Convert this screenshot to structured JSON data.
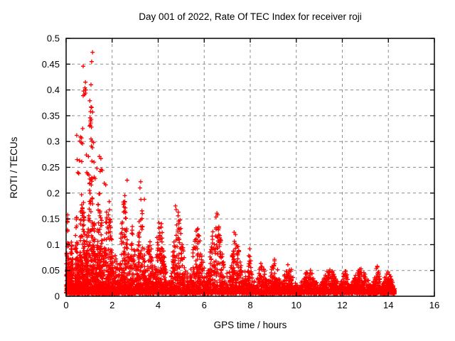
{
  "colors": {
    "marker": "#ff0000",
    "grid": "#8c8c8c",
    "axis": "#000000",
    "background": "#ffffff",
    "text": "#000000"
  },
  "chart_data": {
    "type": "scatter",
    "title": "Day 001 of 2022, Rate Of TEC Index for receiver roji",
    "xlabel": "GPS time / hours",
    "ylabel": "ROTI / TECUs",
    "xlim": [
      0,
      16
    ],
    "ylim": [
      0,
      0.5
    ],
    "xticks": [
      0,
      2,
      4,
      6,
      8,
      10,
      12,
      14,
      16
    ],
    "xtick_labels": [
      "0",
      "2",
      "4",
      "6",
      "8",
      "10",
      "12",
      "14",
      "16"
    ],
    "yticks": [
      0,
      0.05,
      0.1,
      0.15,
      0.2,
      0.25,
      0.3,
      0.35,
      0.4,
      0.45,
      0.5
    ],
    "ytick_labels": [
      "0",
      "0.05",
      "0.1",
      "0.15",
      "0.2",
      "0.25",
      "0.3",
      "0.35",
      "0.4",
      "0.45",
      "0.5"
    ],
    "grid": true,
    "grid_style": "dashed",
    "legend": "none",
    "marker": "plus",
    "marker_color": "#ff0000",
    "series_name": "ROTI",
    "data_hour_range": [
      0.0,
      14.28
    ],
    "max_point": [
      1.15,
      0.473
    ],
    "outliers": [
      [
        1.15,
        0.473
      ],
      [
        1.11,
        0.455
      ],
      [
        0.74,
        0.446
      ],
      [
        0.84,
        0.415
      ],
      [
        1.08,
        0.41
      ],
      [
        0.82,
        0.404
      ],
      [
        0.86,
        0.4
      ],
      [
        0.76,
        0.398
      ],
      [
        0.84,
        0.394
      ],
      [
        0.8,
        0.391
      ],
      [
        0.74,
        0.389
      ],
      [
        1.03,
        0.379
      ],
      [
        1.08,
        0.367
      ],
      [
        1.11,
        0.366
      ],
      [
        1.06,
        0.358
      ],
      [
        1.15,
        0.357
      ],
      [
        1.04,
        0.346
      ],
      [
        1.09,
        0.343
      ],
      [
        1.06,
        0.34
      ],
      [
        1.07,
        0.336
      ],
      [
        1.05,
        0.332
      ],
      [
        1.02,
        0.33
      ],
      [
        1.1,
        0.328
      ],
      [
        0.72,
        0.325
      ],
      [
        0.46,
        0.312
      ],
      [
        0.62,
        0.309
      ],
      [
        0.67,
        0.307
      ],
      [
        0.6,
        0.301
      ],
      [
        0.66,
        0.298
      ],
      [
        0.71,
        0.296
      ],
      [
        1.08,
        0.305
      ],
      [
        1.13,
        0.301
      ],
      [
        1.19,
        0.298
      ],
      [
        1.1,
        0.291
      ],
      [
        1.14,
        0.288
      ],
      [
        0.88,
        0.274
      ],
      [
        0.97,
        0.271
      ],
      [
        1.45,
        0.271
      ],
      [
        1.51,
        0.267
      ],
      [
        0.48,
        0.265
      ],
      [
        0.58,
        0.263
      ],
      [
        0.68,
        0.261
      ],
      [
        1.12,
        0.262
      ],
      [
        1.21,
        0.26
      ],
      [
        1.34,
        0.248
      ],
      [
        1.52,
        0.246
      ],
      [
        1.57,
        0.244
      ],
      [
        1.48,
        0.242
      ],
      [
        0.51,
        0.24
      ],
      [
        0.55,
        0.238
      ],
      [
        0.9,
        0.24
      ],
      [
        0.94,
        0.237
      ],
      [
        0.99,
        0.235
      ],
      [
        1.22,
        0.231
      ],
      [
        1.26,
        0.228
      ],
      [
        2.65,
        0.225
      ],
      [
        3.24,
        0.222
      ],
      [
        3.21,
        0.21
      ],
      [
        1.66,
        0.219
      ],
      [
        1.72,
        0.216
      ],
      [
        4.75,
        0.175
      ],
      [
        4.78,
        0.168
      ],
      [
        6.55,
        0.161
      ],
      [
        6.58,
        0.158
      ],
      [
        5.72,
        0.131
      ],
      [
        7.3,
        0.124
      ],
      [
        2.55,
        0.195
      ],
      [
        3.4,
        0.188
      ]
    ],
    "density_bins_format": "[hour_start, hour_end, max_roti_envelope, approx_point_count]",
    "density_bins": [
      [
        0.0,
        0.15,
        0.17,
        130
      ],
      [
        0.15,
        0.35,
        0.12,
        160
      ],
      [
        0.35,
        0.55,
        0.16,
        170
      ],
      [
        0.55,
        0.85,
        0.24,
        260
      ],
      [
        0.85,
        1.3,
        0.26,
        380
      ],
      [
        1.3,
        1.6,
        0.25,
        250
      ],
      [
        1.6,
        2.05,
        0.21,
        300
      ],
      [
        2.05,
        2.3,
        0.1,
        130
      ],
      [
        2.3,
        2.75,
        0.2,
        260
      ],
      [
        2.75,
        3.05,
        0.15,
        170
      ],
      [
        3.05,
        3.45,
        0.2,
        230
      ],
      [
        3.45,
        3.8,
        0.13,
        180
      ],
      [
        3.8,
        4.35,
        0.16,
        260
      ],
      [
        4.35,
        4.55,
        0.05,
        60
      ],
      [
        4.55,
        5.2,
        0.17,
        300
      ],
      [
        5.2,
        5.35,
        0.05,
        50
      ],
      [
        5.35,
        6.05,
        0.135,
        300
      ],
      [
        6.05,
        6.15,
        0.05,
        40
      ],
      [
        6.15,
        6.9,
        0.165,
        320
      ],
      [
        6.9,
        7.05,
        0.05,
        45
      ],
      [
        7.05,
        7.7,
        0.125,
        280
      ],
      [
        7.7,
        7.85,
        0.05,
        45
      ],
      [
        7.85,
        8.1,
        0.095,
        110
      ],
      [
        8.1,
        8.25,
        0.035,
        45
      ],
      [
        8.25,
        8.75,
        0.07,
        190
      ],
      [
        8.75,
        9.35,
        0.072,
        220
      ],
      [
        9.35,
        10.0,
        0.068,
        230
      ],
      [
        10.0,
        10.1,
        0.03,
        30
      ],
      [
        10.1,
        11.0,
        0.055,
        320
      ],
      [
        11.0,
        11.9,
        0.058,
        330
      ],
      [
        11.9,
        12.3,
        0.065,
        160
      ],
      [
        12.3,
        13.3,
        0.055,
        380
      ],
      [
        13.3,
        13.7,
        0.062,
        160
      ],
      [
        13.7,
        14.28,
        0.055,
        220
      ]
    ]
  }
}
